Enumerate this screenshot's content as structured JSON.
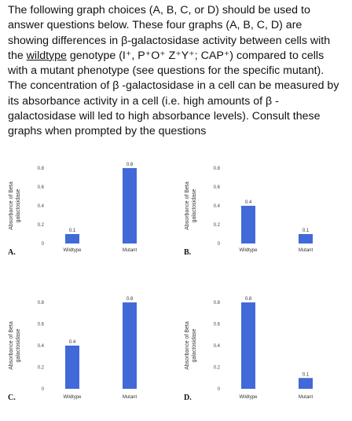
{
  "intro": {
    "p1": "The following graph choices (A, B, C, or D) should be used to answer questions below.  These four graphs (A, B, C, D) are showing differences in β-galactosidase activity between cells with the ",
    "wildtype_word": "wildtype",
    "p2": " genotype (I⁺, P⁺O⁺ Z⁺Y⁺; CAP⁺) compared to cells with a mutant phenotype (see questions for the specific mutant).  The concentration of β -galactosidase in a cell can be measured by its absorbance activity in a cell (i.e. high amounts of β -galactosidase will led to high absorbance levels).  Consult these graphs when prompted by the questions"
  },
  "chart_data": [
    {
      "type": "bar",
      "panel_letter": "A.",
      "categories": [
        "Wildtype",
        "Mutant"
      ],
      "values": [
        0.1,
        0.8
      ],
      "data_labels": [
        "0.1",
        "0.8"
      ],
      "ylabel_line1": "Absorbance of Beta",
      "ylabel_line2": "galactosidase",
      "ylim": [
        0,
        0.8
      ],
      "yticks": [
        "0",
        "0.2",
        "0.4",
        "0.6",
        "0.8"
      ],
      "bar_color": "#4169d8",
      "grid": false
    },
    {
      "type": "bar",
      "panel_letter": "B.",
      "categories": [
        "Wildtype",
        "Mutant"
      ],
      "values": [
        0.4,
        0.1
      ],
      "data_labels": [
        "0.4",
        "0.1"
      ],
      "ylabel_line1": "Absorbance of Beta",
      "ylabel_line2": "galactosidase",
      "ylim": [
        0,
        0.8
      ],
      "yticks": [
        "0",
        "0.2",
        "0.4",
        "0.6",
        "0.8"
      ],
      "bar_color": "#4169d8",
      "grid": false
    },
    {
      "type": "bar",
      "panel_letter": "C.",
      "categories": [
        "Wildtype",
        "Mutant"
      ],
      "values": [
        0.4,
        0.8
      ],
      "data_labels": [
        "0.4",
        "0.8"
      ],
      "ylabel_line1": "Absorbance of Beta",
      "ylabel_line2": "galactosidase",
      "ylim": [
        0,
        0.8
      ],
      "yticks": [
        "0",
        "0.2",
        "0.4",
        "0.6",
        "0.8"
      ],
      "bar_color": "#4169d8",
      "grid": false
    },
    {
      "type": "bar",
      "panel_letter": "D.",
      "categories": [
        "Wildtype",
        "Mutant"
      ],
      "values": [
        0.8,
        0.1
      ],
      "data_labels": [
        "0.8",
        "0.1"
      ],
      "ylabel_line1": "Absorbance of Beta",
      "ylabel_line2": "galactosidase",
      "ylim": [
        0,
        0.8
      ],
      "yticks": [
        "0",
        "0.2",
        "0.4",
        "0.6",
        "0.8"
      ],
      "bar_color": "#4169d8",
      "grid": false
    }
  ]
}
